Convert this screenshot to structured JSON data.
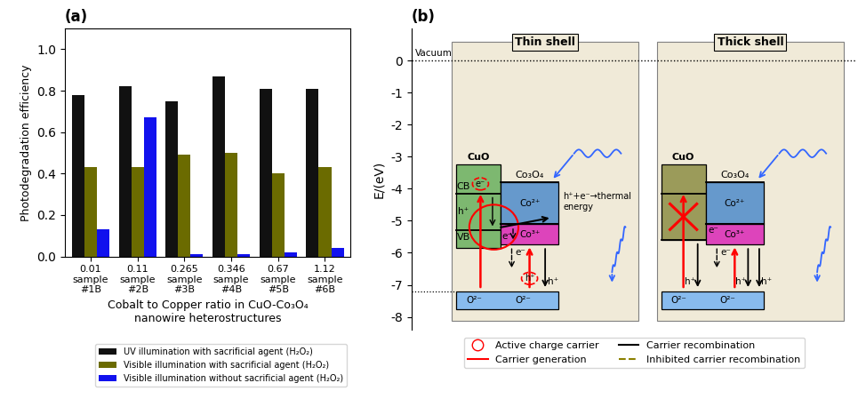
{
  "chart_data": [
    {
      "type": "bar",
      "title": "(a)",
      "categories": [
        "0.01\nsample\n#1B",
        "0.11\nsample\n#2B",
        "0.265\nsample\n#3B",
        "0.346\nsample\n#4B",
        "0.67\nsample\n#5B",
        "1.12\nsample\n#6B"
      ],
      "series": [
        {
          "name": "UV illumination with sacrificial agent (H₂O₂)",
          "color": "#111111",
          "values": [
            0.78,
            0.82,
            0.75,
            0.87,
            0.81,
            0.81
          ]
        },
        {
          "name": "Visible illumination with sacrificial agent (H₂O₂)",
          "color": "#6b6b00",
          "values": [
            0.43,
            0.43,
            0.49,
            0.5,
            0.4,
            0.43
          ]
        },
        {
          "name": "Visible illumination without sacrificial agent (H₂O₂)",
          "color": "#1111ee",
          "values": [
            0.13,
            0.67,
            0.01,
            0.01,
            0.02,
            0.04
          ]
        }
      ],
      "xlabel": "Cobalt to Copper ratio in CuO-Co₃O₄\nnanowire heterostructures",
      "ylabel": "Photodegradation efficiency",
      "ylim": [
        0,
        1.1
      ],
      "yticks": [
        {
          "value": 0,
          "label": "0.0"
        },
        0.2,
        0.4,
        0.6,
        0.8,
        {
          "value": 1,
          "label": "1.0"
        }
      ],
      "legend": "upper right"
    },
    {
      "type": "diagram",
      "title": "(b)",
      "ylabel": "E/(eV)",
      "ylim": [
        -8.4,
        1.0
      ],
      "yticks": [
        0,
        -1,
        -2,
        -3,
        -4,
        -5,
        -6,
        -7,
        -8
      ],
      "tick_labels": "y",
      "legend": "upper center",
      "vacuum": {
        "label": "Vacuum",
        "value": 0
      },
      "electron": "e⁻",
      "hole": "h⁺",
      "band_labels": {
        "cb": "CB",
        "vb": "VB"
      },
      "co3o4": {
        "name": "Co₃O₄",
        "color": "#6699cc"
      },
      "co2plus": {
        "name": "Co²⁺",
        "top": -3.8,
        "bottom": -5.1
      },
      "co3plus": {
        "name": "Co³⁺",
        "color": "#dd44bb",
        "top": -5.1,
        "bottom": -5.75
      },
      "o2minus": {
        "name": "O²⁻",
        "color": "#88bbee",
        "top": -7.2,
        "bottom": -7.75
      },
      "shell_color": "#f0ead8",
      "photon_color": "#3366ff",
      "shells": [
        {
          "name": "Thin shell",
          "cuo": {
            "name": "CuO",
            "color": "#7db870",
            "top": -3.25,
            "bottom": -5.85,
            "cb": -4.15,
            "vb": -5.3
          },
          "note": "h⁺+e⁻→thermal\nenergy"
        },
        {
          "name": "Thick shell",
          "cuo": {
            "name": "CuO",
            "color": "#9b9b5a",
            "top": -3.25,
            "bottom": -5.6,
            "cb": -4.15,
            "vb": -5.6
          }
        }
      ],
      "series": [
        {
          "name": "Active charge carrier",
          "color": "red",
          "marker": "o"
        },
        {
          "name": "Carrier generation",
          "color": "red"
        },
        {
          "name": "Carrier recombination",
          "color": "black"
        },
        {
          "name": "Inhibited carrier recombination",
          "color": "#8B8000",
          "line_style": "dashed"
        }
      ]
    }
  ]
}
